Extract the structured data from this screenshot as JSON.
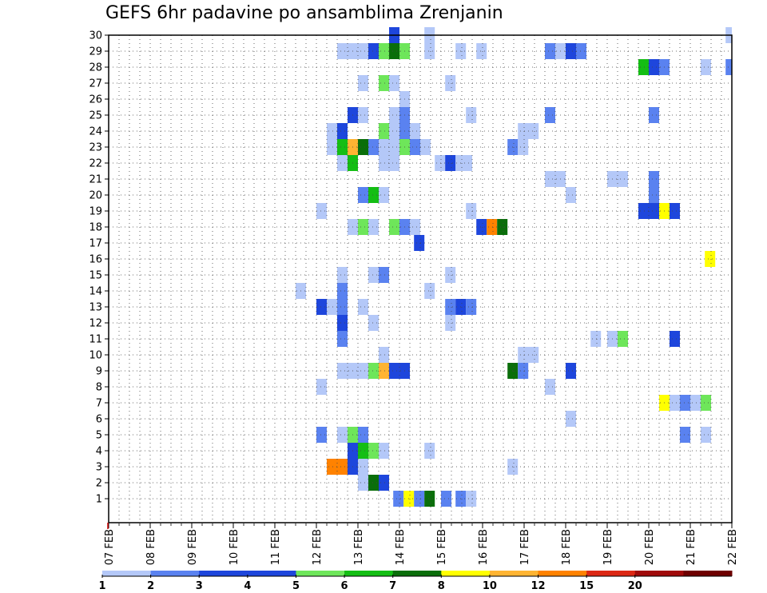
{
  "chart_data": {
    "type": "heatmap",
    "title": "GEFS 6hr padavine po ansamblima Zrenjanin",
    "x_tick_labels": [
      "07 FEB",
      "08 FEB",
      "09 FEB",
      "10 FEB",
      "11 FEB",
      "12 FEB",
      "13 FEB",
      "14 FEB",
      "15 FEB",
      "16 FEB",
      "17 FEB",
      "18 FEB",
      "19 FEB",
      "20 FEB",
      "21 FEB",
      "22 FEB"
    ],
    "y_tick_labels": [
      "1",
      "2",
      "3",
      "4",
      "5",
      "6",
      "7",
      "8",
      "9",
      "10",
      "11",
      "12",
      "13",
      "14",
      "15",
      "16",
      "17",
      "18",
      "19",
      "20",
      "21",
      "22",
      "23",
      "24",
      "25",
      "26",
      "27",
      "28",
      "29",
      "30"
    ],
    "x_range": [
      "07 FEB",
      "22 FEB"
    ],
    "y_range": [
      0,
      30
    ],
    "grid": true,
    "legend_placement": "bottom",
    "legend": {
      "labels": [
        "1",
        "2",
        "3",
        "4",
        "5",
        "6",
        "7",
        "8",
        "10",
        "12",
        "15",
        "20"
      ],
      "colors": [
        "#b4c8f8",
        "#5a82f0",
        "#1e46dc",
        "#1e46dc",
        "#6ee65a",
        "#14be14",
        "#0a6e0a",
        "#ffff00",
        "#ffb432",
        "#ff8200",
        "#dc2814",
        "#a00a0a",
        "#6e0000"
      ]
    },
    "colors": {
      "c1": "#b4c8f8",
      "c2": "#5a82f0",
      "c3": "#1e46dc",
      "c4": "#6ee65a",
      "c5": "#14be14",
      "c6": "#0a6e0a",
      "c7": "#ffff00",
      "c8": "#ffb432",
      "c9": "#ff8200"
    },
    "cells_note": "each cell: [member, start_day_offset_from_07FEB, end_day_offset, color_class]",
    "cells": [
      [
        1,
        6.85,
        7.1,
        "c2"
      ],
      [
        1,
        7.1,
        7.35,
        "c7"
      ],
      [
        1,
        7.35,
        7.6,
        "c2"
      ],
      [
        1,
        7.6,
        7.85,
        "c6"
      ],
      [
        1,
        8.0,
        8.25,
        "c2"
      ],
      [
        1,
        8.35,
        8.6,
        "c2"
      ],
      [
        1,
        8.6,
        8.85,
        "c1"
      ],
      [
        2,
        6.0,
        6.25,
        "c1"
      ],
      [
        2,
        6.25,
        6.5,
        "c6"
      ],
      [
        2,
        6.5,
        6.75,
        "c3"
      ],
      [
        3,
        5.25,
        5.5,
        "c9"
      ],
      [
        3,
        5.5,
        5.75,
        "c9"
      ],
      [
        3,
        5.75,
        6.0,
        "c3"
      ],
      [
        3,
        6.0,
        6.25,
        "c1"
      ],
      [
        3,
        9.6,
        9.85,
        "c1"
      ],
      [
        4,
        5.75,
        6.0,
        "c3"
      ],
      [
        4,
        6.0,
        6.25,
        "c5"
      ],
      [
        4,
        6.25,
        6.5,
        "c4"
      ],
      [
        4,
        6.5,
        6.75,
        "c1"
      ],
      [
        4,
        7.6,
        7.85,
        "c1"
      ],
      [
        5,
        5.0,
        5.25,
        "c2"
      ],
      [
        5,
        5.5,
        5.75,
        "c1"
      ],
      [
        5,
        5.75,
        6.0,
        "c4"
      ],
      [
        5,
        6.0,
        6.25,
        "c2"
      ],
      [
        5,
        13.75,
        14.0,
        "c2"
      ],
      [
        5,
        14.25,
        14.5,
        "c1"
      ],
      [
        6,
        11.0,
        11.25,
        "c1"
      ],
      [
        7,
        13.25,
        13.5,
        "c7"
      ],
      [
        7,
        13.5,
        13.75,
        "c1"
      ],
      [
        7,
        13.75,
        14.0,
        "c2"
      ],
      [
        7,
        14.0,
        14.25,
        "c1"
      ],
      [
        7,
        14.25,
        14.5,
        "c4"
      ],
      [
        8,
        5.0,
        5.25,
        "c1"
      ],
      [
        8,
        10.5,
        10.75,
        "c1"
      ],
      [
        9,
        5.5,
        6.0,
        "c1"
      ],
      [
        9,
        6.0,
        6.25,
        "c1"
      ],
      [
        9,
        6.25,
        6.5,
        "c4"
      ],
      [
        9,
        6.5,
        6.75,
        "c8"
      ],
      [
        9,
        6.75,
        7.25,
        "c3"
      ],
      [
        9,
        9.6,
        9.85,
        "c6"
      ],
      [
        9,
        9.85,
        10.1,
        "c2"
      ],
      [
        9,
        11.0,
        11.25,
        "c3"
      ],
      [
        10,
        6.5,
        6.75,
        "c1"
      ],
      [
        10,
        9.85,
        10.35,
        "c1"
      ],
      [
        11,
        5.5,
        5.75,
        "c2"
      ],
      [
        11,
        11.6,
        11.85,
        "c1"
      ],
      [
        11,
        12.0,
        12.25,
        "c1"
      ],
      [
        11,
        12.25,
        12.5,
        "c4"
      ],
      [
        11,
        13.5,
        13.75,
        "c3"
      ],
      [
        12,
        5.5,
        5.75,
        "c3"
      ],
      [
        12,
        6.25,
        6.5,
        "c1"
      ],
      [
        12,
        8.1,
        8.35,
        "c1"
      ],
      [
        13,
        5.0,
        5.25,
        "c3"
      ],
      [
        13,
        5.25,
        5.5,
        "c1"
      ],
      [
        13,
        5.5,
        5.75,
        "c2"
      ],
      [
        13,
        6.0,
        6.25,
        "c1"
      ],
      [
        13,
        8.1,
        8.35,
        "c2"
      ],
      [
        13,
        8.35,
        8.6,
        "c3"
      ],
      [
        13,
        8.6,
        8.85,
        "c2"
      ],
      [
        14,
        4.5,
        4.75,
        "c1"
      ],
      [
        14,
        5.5,
        5.75,
        "c2"
      ],
      [
        14,
        7.6,
        7.85,
        "c1"
      ],
      [
        15,
        5.5,
        5.75,
        "c1"
      ],
      [
        15,
        6.25,
        6.5,
        "c1"
      ],
      [
        15,
        6.5,
        6.75,
        "c2"
      ],
      [
        15,
        8.1,
        8.35,
        "c1"
      ],
      [
        16,
        14.35,
        14.6,
        "c7"
      ],
      [
        17,
        7.35,
        7.6,
        "c3"
      ],
      [
        18,
        5.75,
        6.0,
        "c1"
      ],
      [
        18,
        6.0,
        6.25,
        "c4"
      ],
      [
        18,
        6.25,
        6.5,
        "c1"
      ],
      [
        18,
        6.75,
        7.0,
        "c4"
      ],
      [
        18,
        7.0,
        7.25,
        "c2"
      ],
      [
        18,
        7.25,
        7.5,
        "c1"
      ],
      [
        18,
        8.85,
        9.1,
        "c3"
      ],
      [
        18,
        9.1,
        9.35,
        "c9"
      ],
      [
        18,
        9.35,
        9.6,
        "c6"
      ],
      [
        19,
        5.0,
        5.25,
        "c1"
      ],
      [
        19,
        8.6,
        8.85,
        "c1"
      ],
      [
        19,
        12.75,
        13.25,
        "c3"
      ],
      [
        19,
        13.25,
        13.5,
        "c7"
      ],
      [
        19,
        13.5,
        13.75,
        "c3"
      ],
      [
        20,
        6.0,
        6.25,
        "c2"
      ],
      [
        20,
        6.25,
        6.5,
        "c5"
      ],
      [
        20,
        6.5,
        6.75,
        "c1"
      ],
      [
        20,
        11.0,
        11.25,
        "c1"
      ],
      [
        20,
        13.0,
        13.25,
        "c2"
      ],
      [
        21,
        10.5,
        11.0,
        "c1"
      ],
      [
        21,
        12.0,
        12.5,
        "c1"
      ],
      [
        21,
        13.0,
        13.25,
        "c2"
      ],
      [
        22,
        5.5,
        5.75,
        "c1"
      ],
      [
        22,
        5.75,
        6.0,
        "c5"
      ],
      [
        22,
        6.5,
        7.0,
        "c1"
      ],
      [
        22,
        7.85,
        8.1,
        "c1"
      ],
      [
        22,
        8.1,
        8.35,
        "c3"
      ],
      [
        22,
        8.35,
        8.75,
        "c1"
      ],
      [
        23,
        5.25,
        5.5,
        "c1"
      ],
      [
        23,
        5.5,
        5.75,
        "c5"
      ],
      [
        23,
        5.75,
        6.0,
        "c8"
      ],
      [
        23,
        6.0,
        6.25,
        "c6"
      ],
      [
        23,
        6.25,
        6.5,
        "c2"
      ],
      [
        23,
        6.5,
        7.0,
        "c1"
      ],
      [
        23,
        7.0,
        7.25,
        "c4"
      ],
      [
        23,
        7.25,
        7.5,
        "c2"
      ],
      [
        23,
        7.5,
        7.75,
        "c1"
      ],
      [
        23,
        9.6,
        9.85,
        "c2"
      ],
      [
        23,
        9.85,
        10.1,
        "c1"
      ],
      [
        24,
        5.25,
        5.5,
        "c1"
      ],
      [
        24,
        5.5,
        5.75,
        "c3"
      ],
      [
        24,
        6.5,
        6.75,
        "c4"
      ],
      [
        24,
        6.75,
        7.0,
        "c1"
      ],
      [
        24,
        7.0,
        7.25,
        "c2"
      ],
      [
        24,
        7.25,
        7.5,
        "c1"
      ],
      [
        24,
        9.85,
        10.35,
        "c1"
      ],
      [
        25,
        5.75,
        6.0,
        "c3"
      ],
      [
        25,
        6.0,
        6.25,
        "c1"
      ],
      [
        25,
        6.75,
        7.0,
        "c1"
      ],
      [
        25,
        7.0,
        7.25,
        "c2"
      ],
      [
        25,
        8.6,
        8.85,
        "c1"
      ],
      [
        25,
        10.5,
        10.75,
        "c2"
      ],
      [
        25,
        13.0,
        13.25,
        "c2"
      ],
      [
        26,
        7.0,
        7.25,
        "c1"
      ],
      [
        27,
        6.0,
        6.25,
        "c1"
      ],
      [
        27,
        6.5,
        6.75,
        "c4"
      ],
      [
        27,
        6.75,
        7.0,
        "c1"
      ],
      [
        27,
        8.1,
        8.35,
        "c1"
      ],
      [
        28,
        12.75,
        13.0,
        "c5"
      ],
      [
        28,
        13.0,
        13.25,
        "c3"
      ],
      [
        28,
        13.25,
        13.5,
        "c2"
      ],
      [
        28,
        14.25,
        14.5,
        "c1"
      ],
      [
        28,
        14.85,
        15.0,
        "c2"
      ],
      [
        29,
        5.5,
        6.0,
        "c1"
      ],
      [
        29,
        6.0,
        6.25,
        "c1"
      ],
      [
        29,
        6.25,
        6.5,
        "c3"
      ],
      [
        29,
        6.5,
        6.75,
        "c4"
      ],
      [
        29,
        6.75,
        7.0,
        "c6"
      ],
      [
        29,
        7.0,
        7.25,
        "c4"
      ],
      [
        29,
        7.6,
        7.85,
        "c1"
      ],
      [
        29,
        8.35,
        8.6,
        "c1"
      ],
      [
        29,
        8.85,
        9.1,
        "c1"
      ],
      [
        29,
        10.5,
        10.75,
        "c2"
      ],
      [
        29,
        10.75,
        11.0,
        "c1"
      ],
      [
        29,
        11.0,
        11.25,
        "c3"
      ],
      [
        29,
        11.25,
        11.5,
        "c2"
      ],
      [
        30,
        6.75,
        7.0,
        "c3"
      ],
      [
        30,
        7.6,
        7.85,
        "c1"
      ],
      [
        30,
        14.85,
        15.0,
        "c1"
      ]
    ]
  }
}
